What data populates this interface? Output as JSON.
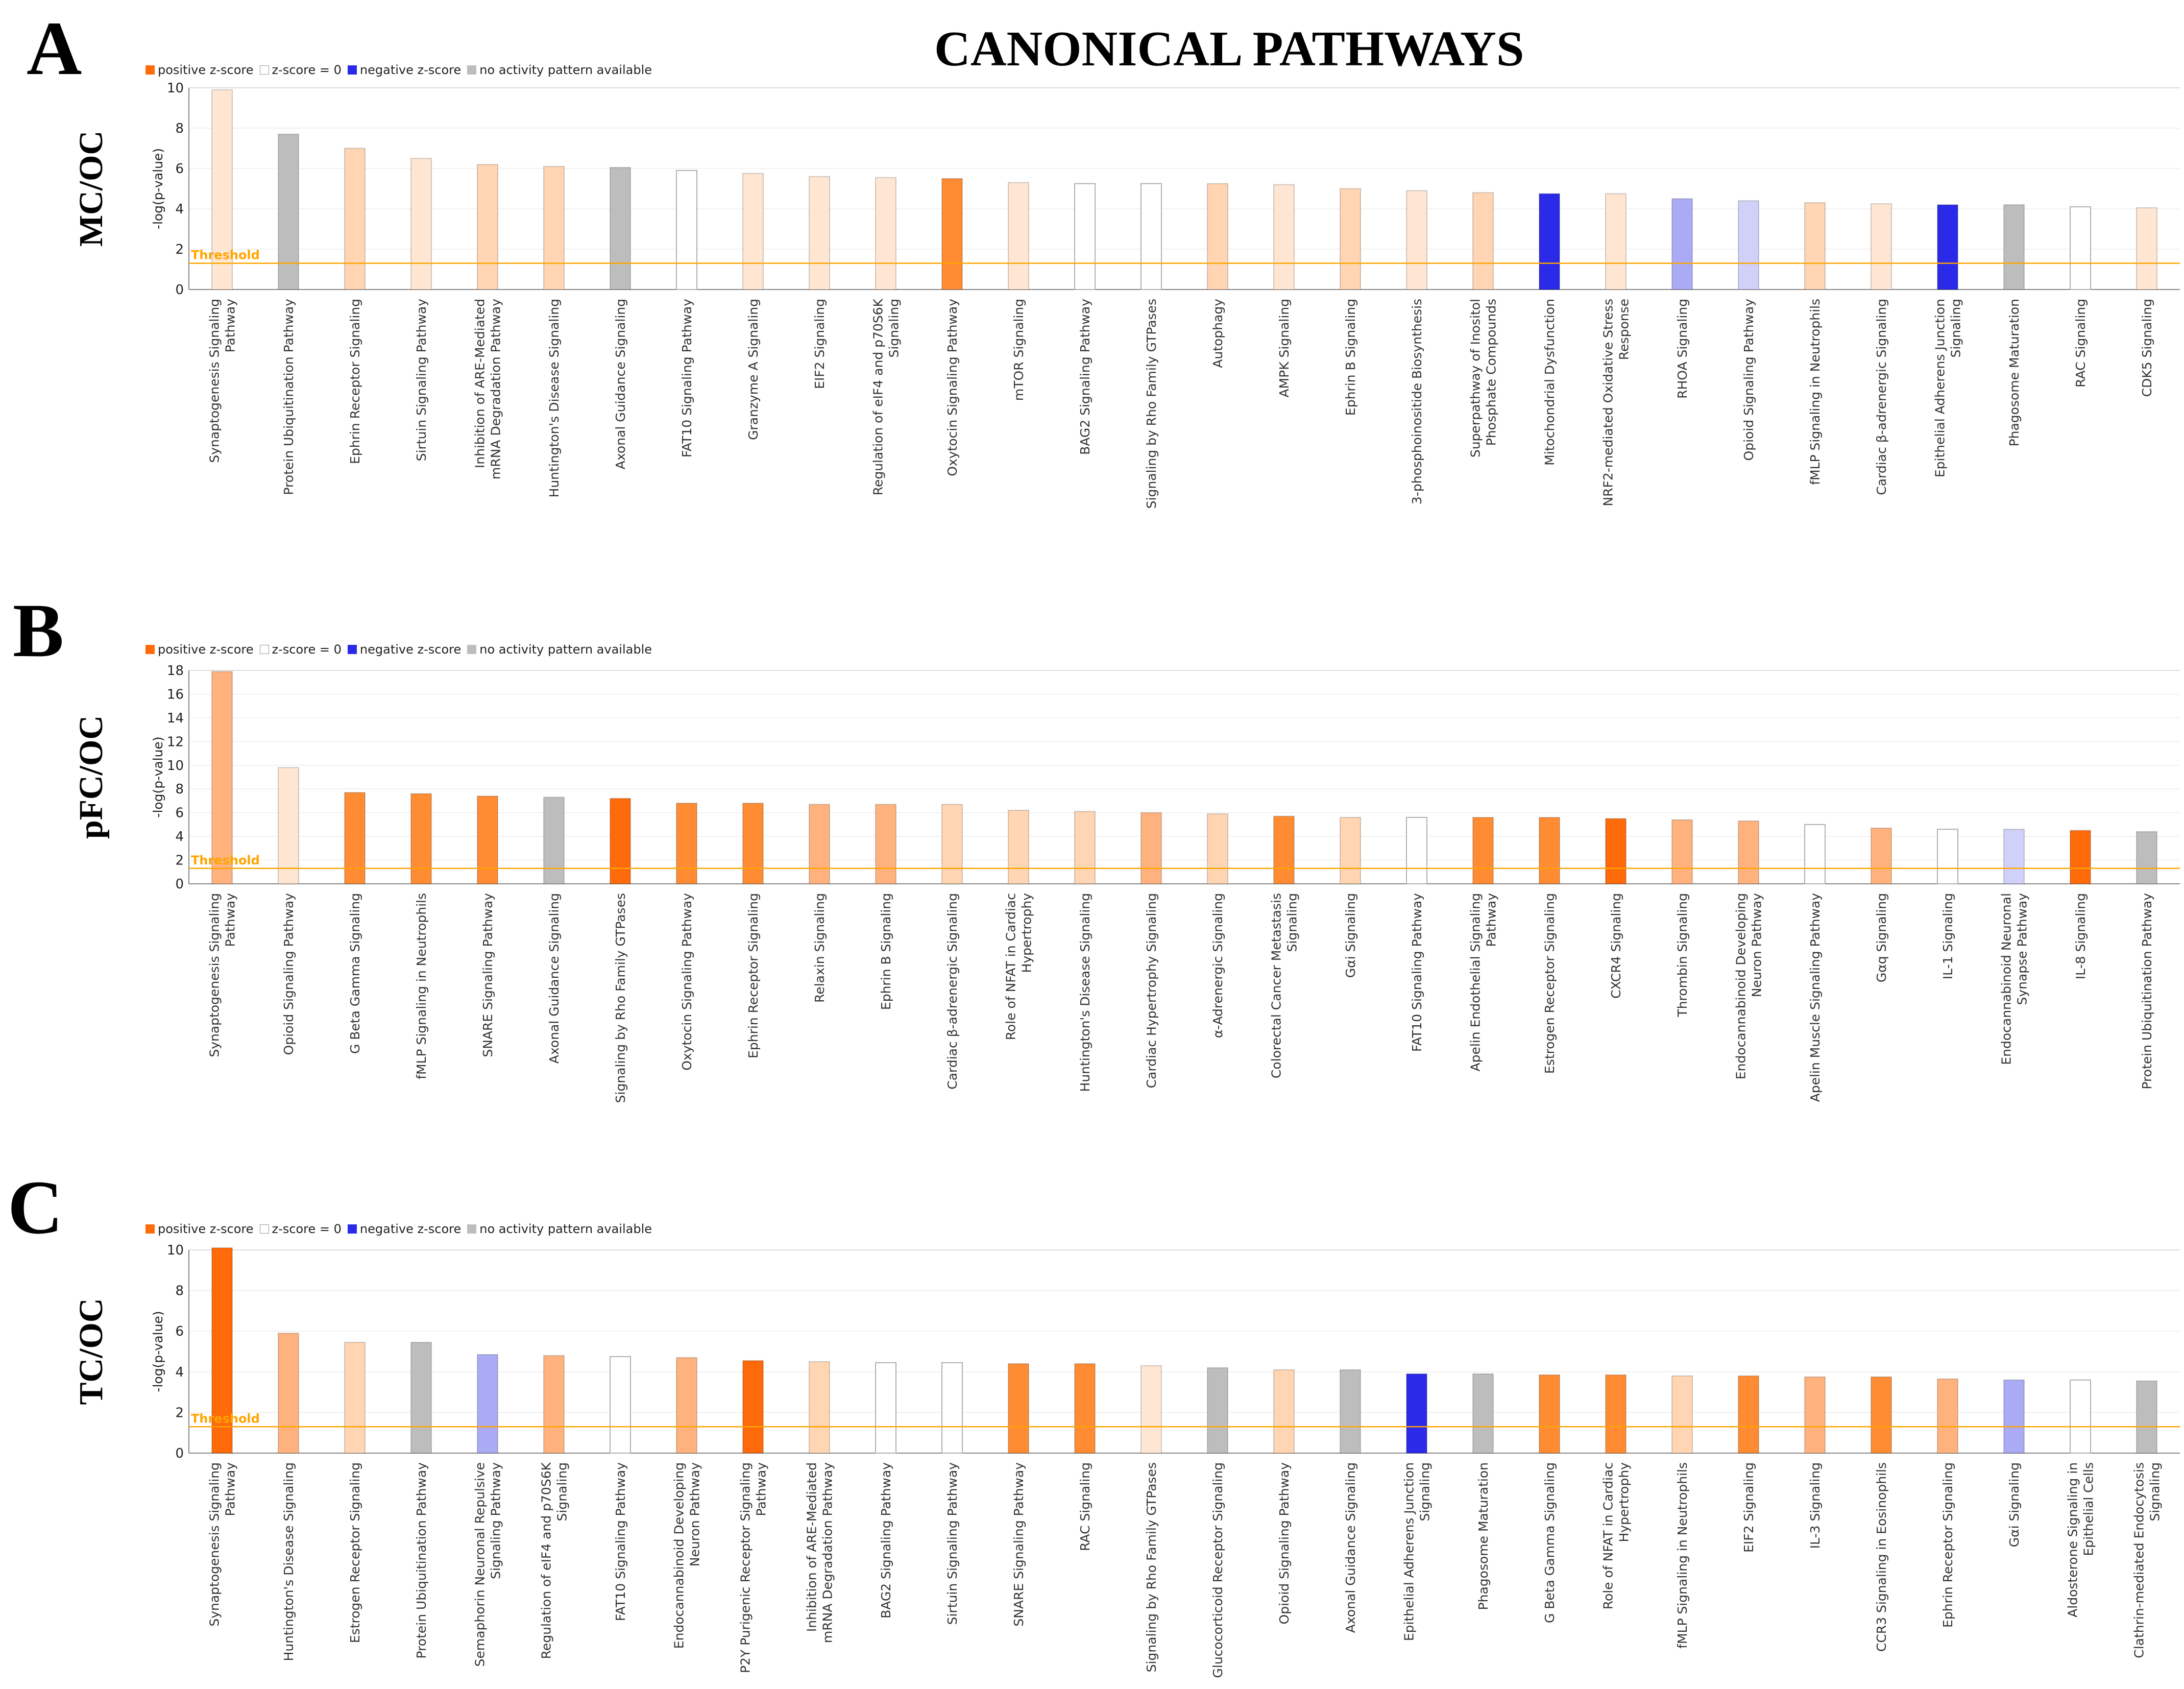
{
  "title": "CANONICAL PATHWAYS",
  "legend": {
    "positive": "positive z-score",
    "zero": "z-score = 0",
    "negative": "negative z-score",
    "none": "no activity pattern available"
  },
  "colors": {
    "pos_strong": "#ff6a0a",
    "pos_mid": "#ff8c33",
    "pos_light": "#ffb27d",
    "pos_pale": "#ffd5b3",
    "pos_faint": "#ffe6d3",
    "zero": "#ffffff",
    "neg_strong": "#2a2ae8",
    "neg_light": "#aaaaf5",
    "neg_faint": "#d0d0f8",
    "none": "#bdbdbd",
    "threshold": "#ffa500"
  },
  "chart_data": [
    {
      "panel_label": "A",
      "ylabel_group": "MC/OC",
      "type": "bar",
      "ylabel": "-log(p-value)",
      "ylim": [
        0,
        10
      ],
      "yticks": [
        "0",
        "2",
        "4",
        "6",
        "8",
        "10"
      ],
      "threshold": 1.3,
      "threshold_label": "Threshold",
      "categories": [
        "Synaptogenesis Signaling Pathway",
        "Protein Ubiquitination Pathway",
        "Ephrin Receptor Signaling",
        "Sirtuin Signaling Pathway",
        "Inhibition of ARE-Mediated mRNA Degradation Pathway",
        "Huntington's Disease Signaling",
        "Axonal Guidance Signaling",
        "FAT10 Signaling Pathway",
        "Granzyme A Signaling",
        "EIF2 Signaling",
        "Regulation of eIF4 and p70S6K Signaling",
        "Oxytocin Signaling Pathway",
        "mTOR Signaling",
        "BAG2 Signaling Pathway",
        "Signaling by Rho Family GTPases",
        "Autophagy",
        "AMPK Signaling",
        "Ephrin B Signaling",
        "3-phosphoinositide Biosynthesis",
        "Superpathway of Inositol Phosphate Compounds",
        "Mitochondrial Dysfunction",
        "NRF2-mediated Oxidative Stress Response",
        "RHOA Signaling",
        "Opioid Signaling Pathway",
        "fMLP Signaling in Neutrophils",
        "Cardiac β-adrenergic Signaling",
        "Epithelial Adherens Junction Signaling",
        "Phagosome Maturation",
        "RAC Signaling",
        "CDK5 Signaling"
      ],
      "label_lines": [
        [
          "Synaptogenesis Signaling",
          "Pathway"
        ],
        [
          "Protein Ubiquitination Pathway"
        ],
        [
          "Ephrin Receptor Signaling"
        ],
        [
          "Sirtuin Signaling Pathway"
        ],
        [
          "Inhibition of ARE-Mediated",
          "mRNA Degradation Pathway"
        ],
        [
          "Huntington's Disease Signaling"
        ],
        [
          "Axonal Guidance Signaling"
        ],
        [
          "FAT10 Signaling Pathway"
        ],
        [
          "Granzyme A Signaling"
        ],
        [
          "EIF2 Signaling"
        ],
        [
          "Regulation of eIF4 and p70S6K",
          "Signaling"
        ],
        [
          "Oxytocin Signaling Pathway"
        ],
        [
          "mTOR Signaling"
        ],
        [
          "BAG2 Signaling Pathway"
        ],
        [
          "Signaling by Rho Family GTPases"
        ],
        [
          "Autophagy"
        ],
        [
          "AMPK Signaling"
        ],
        [
          "Ephrin B Signaling"
        ],
        [
          "3-phosphoinositide Biosynthesis"
        ],
        [
          "Superpathway of Inositol",
          "Phosphate Compounds"
        ],
        [
          "Mitochondrial Dysfunction"
        ],
        [
          "NRF2-mediated Oxidative Stress",
          "Response"
        ],
        [
          "RHOA Signaling"
        ],
        [
          "Opioid Signaling Pathway"
        ],
        [
          "fMLP Signaling in Neutrophils"
        ],
        [
          "Cardiac β-adrenergic Signaling"
        ],
        [
          "Epithelial Adherens Junction",
          "Signaling"
        ],
        [
          "Phagosome Maturation"
        ],
        [
          "RAC Signaling"
        ],
        [
          "CDK5 Signaling"
        ]
      ],
      "values": [
        9.9,
        7.7,
        7.0,
        6.5,
        6.2,
        6.1,
        6.05,
        5.9,
        5.75,
        5.6,
        5.55,
        5.5,
        5.3,
        5.25,
        5.25,
        5.25,
        5.2,
        5.0,
        4.9,
        4.8,
        4.75,
        4.75,
        4.5,
        4.4,
        4.3,
        4.25,
        4.2,
        4.2,
        4.1,
        4.05
      ],
      "color_keys": [
        "pos_faint",
        "none",
        "pos_pale",
        "pos_faint",
        "pos_pale",
        "pos_pale",
        "none",
        "zero",
        "pos_faint",
        "pos_faint",
        "pos_faint",
        "pos_mid",
        "pos_faint",
        "zero",
        "zero",
        "pos_pale",
        "pos_faint",
        "pos_pale",
        "pos_faint",
        "pos_pale",
        "neg_strong",
        "pos_faint",
        "neg_light",
        "neg_faint",
        "pos_pale",
        "pos_faint",
        "neg_strong",
        "none",
        "zero",
        "pos_faint"
      ]
    },
    {
      "panel_label": "B",
      "ylabel_group": "pFC/OC",
      "type": "bar",
      "ylabel": "-log(p-value)",
      "ylim": [
        0,
        18
      ],
      "yticks": [
        "0",
        "2",
        "4",
        "6",
        "8",
        "10",
        "12",
        "14",
        "16",
        "18"
      ],
      "threshold": 1.3,
      "threshold_label": "Threshold",
      "categories": [
        "Synaptogenesis Signaling Pathway",
        "Opioid Signaling Pathway",
        "G Beta Gamma Signaling",
        "fMLP Signaling in Neutrophils",
        "SNARE Signaling Pathway",
        "Axonal Guidance Signaling",
        "Signaling by Rho Family GTPases",
        "Oxytocin Signaling Pathway",
        "Ephrin Receptor Signaling",
        "Relaxin Signaling",
        "Ephrin B Signaling",
        "Cardiac β-adrenergic Signaling",
        "Role of NFAT in Cardiac Hypertrophy",
        "Huntington's Disease Signaling",
        "Cardiac Hypertrophy Signaling",
        "α-Adrenergic Signaling",
        "Colorectal Cancer Metastasis Signaling",
        "Gαi Signaling",
        "FAT10 Signaling Pathway",
        "Apelin Endothelial Signaling Pathway",
        "Estrogen Receptor Signaling",
        "CXCR4 Signaling",
        "Thrombin Signaling",
        "Endocannabinoid Developing Neuron Pathway",
        "Apelin Muscle Signaling Pathway",
        "Gαq Signaling",
        "IL-1 Signaling",
        "Endocannabinoid Neuronal Synapse Pathway",
        "IL-8 Signaling",
        "Protein Ubiquitination Pathway"
      ],
      "label_lines": [
        [
          "Synaptogenesis Signaling",
          "Pathway"
        ],
        [
          "Opioid Signaling Pathway"
        ],
        [
          "G Beta Gamma Signaling"
        ],
        [
          "fMLP Signaling in Neutrophils"
        ],
        [
          "SNARE Signaling Pathway"
        ],
        [
          "Axonal Guidance Signaling"
        ],
        [
          "Signaling by Rho Family GTPases"
        ],
        [
          "Oxytocin Signaling Pathway"
        ],
        [
          "Ephrin Receptor Signaling"
        ],
        [
          "Relaxin Signaling"
        ],
        [
          "Ephrin B Signaling"
        ],
        [
          "Cardiac β-adrenergic Signaling"
        ],
        [
          "Role of NFAT in Cardiac",
          "Hypertrophy"
        ],
        [
          "Huntington's Disease Signaling"
        ],
        [
          "Cardiac Hypertrophy Signaling"
        ],
        [
          "α-Adrenergic Signaling"
        ],
        [
          "Colorectal Cancer Metastasis",
          "Signaling"
        ],
        [
          "Gαi Signaling"
        ],
        [
          "FAT10 Signaling Pathway"
        ],
        [
          "Apelin Endothelial Signaling",
          "Pathway"
        ],
        [
          "Estrogen Receptor Signaling"
        ],
        [
          "CXCR4 Signaling"
        ],
        [
          "Thrombin Signaling"
        ],
        [
          "Endocannabinoid Developing",
          "Neuron Pathway"
        ],
        [
          "Apelin Muscle Signaling Pathway"
        ],
        [
          "Gαq Signaling"
        ],
        [
          "IL-1 Signaling"
        ],
        [
          "Endocannabinoid Neuronal",
          "Synapse Pathway"
        ],
        [
          "IL-8 Signaling"
        ],
        [
          "Protein Ubiquitination Pathway"
        ]
      ],
      "values": [
        17.9,
        9.8,
        7.7,
        7.6,
        7.4,
        7.3,
        7.2,
        6.8,
        6.8,
        6.7,
        6.7,
        6.7,
        6.2,
        6.1,
        6.0,
        5.9,
        5.7,
        5.6,
        5.6,
        5.6,
        5.6,
        5.5,
        5.4,
        5.3,
        5.0,
        4.7,
        4.6,
        4.6,
        4.5,
        4.4
      ],
      "color_keys": [
        "pos_light",
        "pos_faint",
        "pos_mid",
        "pos_mid",
        "pos_mid",
        "none",
        "pos_strong",
        "pos_mid",
        "pos_mid",
        "pos_light",
        "pos_light",
        "pos_pale",
        "pos_pale",
        "pos_pale",
        "pos_light",
        "pos_pale",
        "pos_mid",
        "pos_pale",
        "zero",
        "pos_mid",
        "pos_mid",
        "pos_strong",
        "pos_light",
        "pos_light",
        "zero",
        "pos_light",
        "zero",
        "neg_faint",
        "pos_strong",
        "none"
      ]
    },
    {
      "panel_label": "C",
      "ylabel_group": "TC/OC",
      "type": "bar",
      "ylabel": "-log(p-value)",
      "ylim": [
        0,
        10
      ],
      "yticks": [
        "0",
        "2",
        "4",
        "6",
        "8",
        "10"
      ],
      "threshold": 1.3,
      "threshold_label": "Threshold",
      "categories": [
        "Synaptogenesis Signaling Pathway",
        "Huntington's Disease Signaling",
        "Estrogen Receptor Signaling",
        "Protein Ubiquitination Pathway",
        "Semaphorin Neuronal Repulsive Signaling Pathway",
        "Regulation of eIF4 and p70S6K Signaling",
        "FAT10 Signaling Pathway",
        "Endocannabinoid Developing Neuron Pathway",
        "P2Y Purigenic Receptor Signaling Pathway",
        "Inhibition of ARE-Mediated mRNA Degradation Pathway",
        "BAG2 Signaling Pathway",
        "Sirtuin Signaling Pathway",
        "SNARE Signaling Pathway",
        "RAC Signaling",
        "Signaling by Rho Family GTPases",
        "Glucocorticoid Receptor Signaling",
        "Opioid Signaling Pathway",
        "Axonal Guidance Signaling",
        "Epithelial Adherens Junction Signaling",
        "Phagosome Maturation",
        "G Beta Gamma Signaling",
        "Role of NFAT in Cardiac Hypertrophy",
        "fMLP Signaling in Neutrophils",
        "EIF2 Signaling",
        "IL-3 Signaling",
        "CCR3 Signaling in Eosinophils",
        "Ephrin Receptor Signaling",
        "Gαi Signaling",
        "Aldosterone Signaling in Epithelial Cells",
        "Clathrin-mediated Endocytosis Signaling"
      ],
      "label_lines": [
        [
          "Synaptogenesis Signaling",
          "Pathway"
        ],
        [
          "Huntington's Disease Signaling"
        ],
        [
          "Estrogen Receptor Signaling"
        ],
        [
          "Protein Ubiquitination Pathway"
        ],
        [
          "Semaphorin Neuronal Repulsive",
          "Signaling Pathway"
        ],
        [
          "Regulation of eIF4 and p70S6K",
          "Signaling"
        ],
        [
          "FAT10 Signaling Pathway"
        ],
        [
          "Endocannabinoid Developing",
          "Neuron Pathway"
        ],
        [
          "P2Y Purigenic Receptor Signaling",
          "Pathway"
        ],
        [
          "Inhibition of ARE-Mediated",
          "mRNA Degradation Pathway"
        ],
        [
          "BAG2 Signaling Pathway"
        ],
        [
          "Sirtuin Signaling Pathway"
        ],
        [
          "SNARE Signaling Pathway"
        ],
        [
          "RAC Signaling"
        ],
        [
          "Signaling by Rho Family GTPases"
        ],
        [
          "Glucocorticoid Receptor Signaling"
        ],
        [
          "Opioid Signaling Pathway"
        ],
        [
          "Axonal Guidance Signaling"
        ],
        [
          "Epithelial Adherens Junction",
          "Signaling"
        ],
        [
          "Phagosome Maturation"
        ],
        [
          "G Beta Gamma Signaling"
        ],
        [
          "Role of NFAT in Cardiac",
          "Hypertrophy"
        ],
        [
          "fMLP Signaling in Neutrophils"
        ],
        [
          "EIF2 Signaling"
        ],
        [
          "IL-3 Signaling"
        ],
        [
          "CCR3 Signaling in Eosinophils"
        ],
        [
          "Ephrin Receptor Signaling"
        ],
        [
          "Gαi Signaling"
        ],
        [
          "Aldosterone Signaling in",
          "Epithelial Cells"
        ],
        [
          "Clathrin-mediated Endocytosis",
          "Signaling"
        ]
      ],
      "values": [
        10.1,
        5.9,
        5.45,
        5.45,
        4.85,
        4.8,
        4.75,
        4.7,
        4.55,
        4.5,
        4.45,
        4.45,
        4.4,
        4.4,
        4.3,
        4.2,
        4.1,
        4.1,
        3.9,
        3.9,
        3.85,
        3.85,
        3.8,
        3.8,
        3.75,
        3.75,
        3.65,
        3.6,
        3.6,
        3.55
      ],
      "color_keys": [
        "pos_strong",
        "pos_light",
        "pos_pale",
        "none",
        "neg_light",
        "pos_light",
        "zero",
        "pos_light",
        "pos_strong",
        "pos_pale",
        "zero",
        "zero",
        "pos_mid",
        "pos_mid",
        "pos_faint",
        "none",
        "pos_pale",
        "none",
        "neg_strong",
        "none",
        "pos_mid",
        "pos_mid",
        "pos_pale",
        "pos_mid",
        "pos_light",
        "pos_mid",
        "pos_light",
        "neg_light",
        "zero",
        "none"
      ]
    }
  ]
}
